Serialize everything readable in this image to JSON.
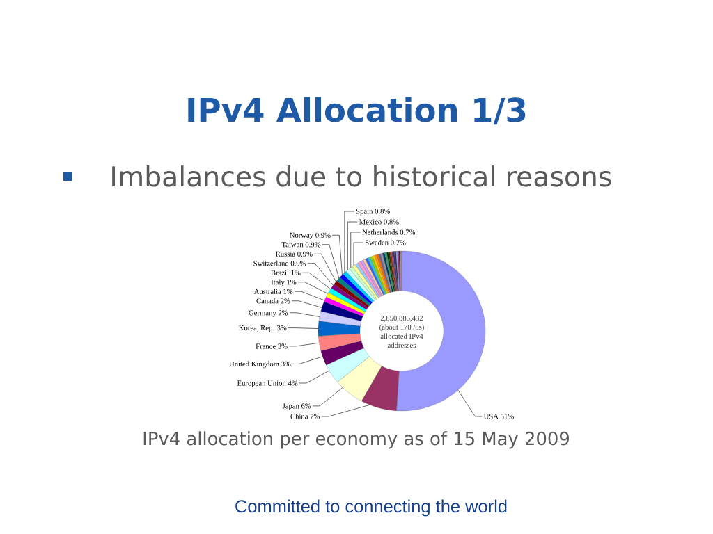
{
  "chart_data": {
    "type": "donut",
    "title": "IPv4 Allocation 1/3",
    "subtitle": "Imbalances due to historical reasons",
    "categories": [
      "USA",
      "China",
      "Japan",
      "European Union",
      "United Kingdom",
      "France",
      "Korea, Rep.",
      "Germany",
      "Canada",
      "Australia",
      "Italy",
      "Brazil",
      "Switzerland",
      "Russia",
      "Taiwan",
      "Norway",
      "Spain",
      "Mexico",
      "Netherlands",
      "Sweden",
      null,
      null,
      null,
      null,
      null,
      null,
      null,
      null,
      null,
      null,
      null,
      null,
      null,
      null,
      null,
      null,
      null,
      null,
      null,
      null,
      null,
      null,
      null,
      null,
      null
    ],
    "values": [
      51,
      7,
      6,
      4,
      3,
      3,
      3,
      2,
      2,
      1,
      1,
      1,
      0.9,
      0.9,
      0.9,
      0.9,
      0.8,
      0.8,
      0.7,
      0.7,
      0.6,
      0.6,
      0.5,
      0.5,
      0.5,
      0.5,
      0.5,
      0.4,
      0.4,
      0.4,
      0.4,
      0.4,
      0.4,
      0.4,
      0.3,
      0.3,
      0.3,
      0.3,
      0.3,
      0.3,
      0.3,
      0.2,
      0.2,
      0.2,
      0.2
    ],
    "value_labels": [
      "51%",
      "7%",
      "6%",
      "4%",
      "3%",
      "3%",
      "3%",
      "2%",
      "2%",
      "1%",
      "1%",
      "1%",
      "0.9%",
      "0.9%",
      "0.9%",
      "0.9%",
      "0.8%",
      "0.8%",
      "0.7%",
      "0.7%",
      null,
      null,
      null,
      null,
      null,
      null,
      null,
      null,
      null,
      null,
      null,
      null,
      null,
      null,
      null,
      null,
      null,
      null,
      null,
      null,
      null,
      null,
      null,
      null,
      null
    ],
    "colors": [
      "#9999ff",
      "#993366",
      "#ffffcc",
      "#ccffff",
      "#660066",
      "#ff8080",
      "#0066cc",
      "#ccccff",
      "#000080",
      "#ff00ff",
      "#ffff00",
      "#00ffff",
      "#800080",
      "#800000",
      "#008080",
      "#0000ff",
      "#00ccff",
      "#ccffff",
      "#ccffcc",
      "#ffff99",
      "#99ccff",
      "#ff99cc",
      "#cc99ff",
      "#ffcc99",
      "#3366ff",
      "#33cccc",
      "#99cc00",
      "#ffcc00",
      "#ff9900",
      "#ff6600",
      "#666699",
      "#969696",
      "#003366",
      "#339966",
      "#003300",
      "#333300",
      "#993300",
      "#993366",
      "#333399",
      "#333333",
      "#9999ff",
      "#993366",
      "#660066",
      "#bf9fb0",
      "#9f8f9f"
    ],
    "annotations": [
      "2,850,885,432 (about 170 /8s) allocated IPv4 addresses",
      "IPv4 allocation per economy as of 15 May 2009",
      "Committed to connecting the world"
    ]
  }
}
